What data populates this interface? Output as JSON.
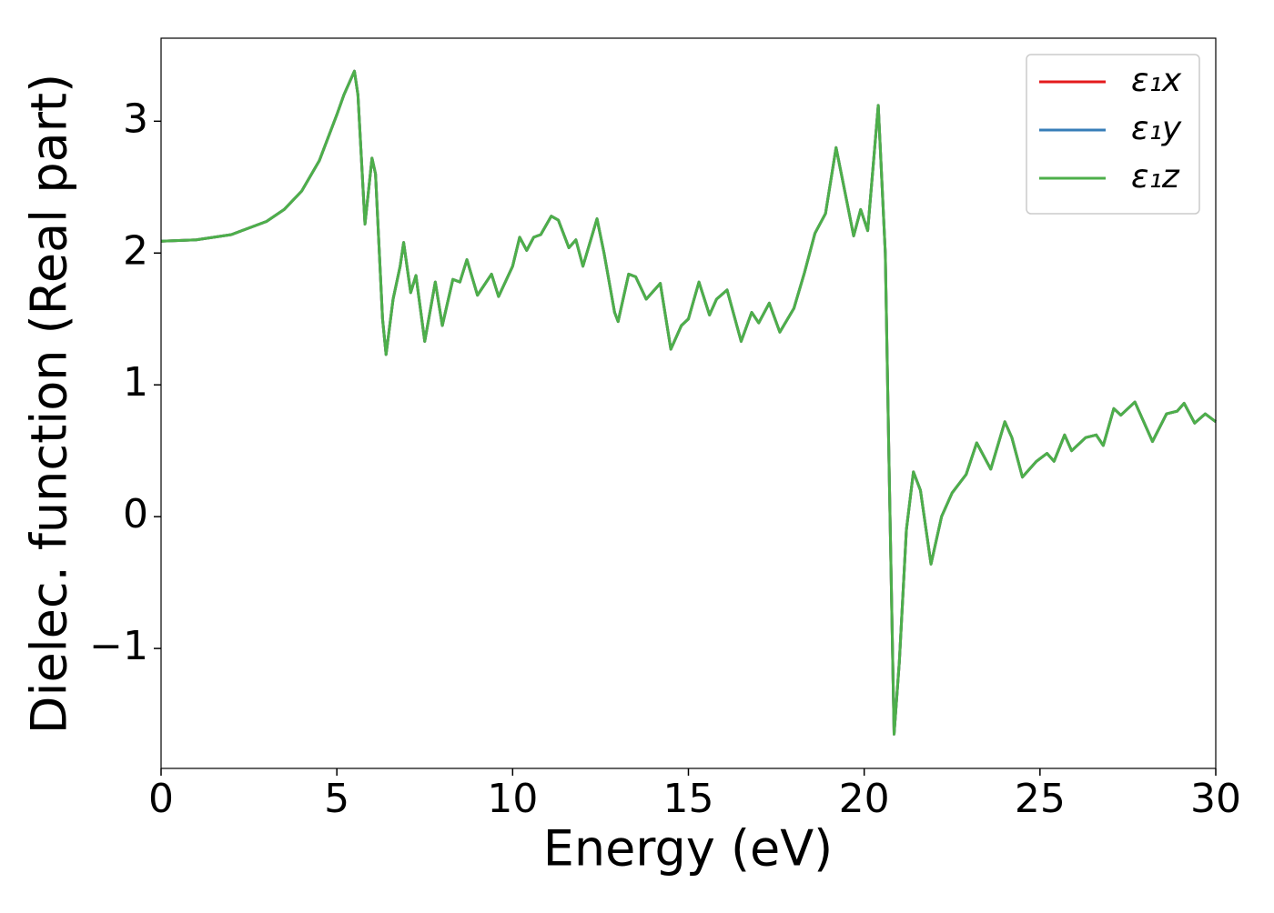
{
  "chart_data": {
    "type": "line",
    "xlabel": "Energy (eV)",
    "ylabel": "Dielec. function (Real part)",
    "x": [
      0,
      1,
      2,
      3,
      3.5,
      4,
      4.5,
      5,
      5.2,
      5.5,
      5.6,
      5.8,
      6.0,
      6.1,
      6.3,
      6.4,
      6.6,
      6.8,
      6.9,
      7.1,
      7.25,
      7.5,
      7.8,
      8.0,
      8.3,
      8.5,
      8.7,
      9.0,
      9.4,
      9.6,
      10.0,
      10.2,
      10.4,
      10.6,
      10.8,
      11.1,
      11.3,
      11.6,
      11.8,
      12.0,
      12.4,
      12.6,
      12.9,
      13.0,
      13.3,
      13.5,
      13.8,
      14.2,
      14.5,
      14.8,
      15.0,
      15.3,
      15.6,
      15.8,
      16.1,
      16.5,
      16.8,
      17.0,
      17.3,
      17.6,
      18.0,
      18.3,
      18.6,
      18.9,
      19.2,
      19.5,
      19.7,
      19.9,
      20.1,
      20.4,
      20.6,
      20.7,
      20.85,
      21.0,
      21.2,
      21.4,
      21.6,
      21.9,
      22.2,
      22.5,
      22.9,
      23.2,
      23.6,
      24.0,
      24.2,
      24.5,
      24.9,
      25.2,
      25.4,
      25.7,
      25.9,
      26.3,
      26.6,
      26.8,
      27.1,
      27.3,
      27.7,
      28.2,
      28.6,
      28.9,
      29.1,
      29.4,
      29.7,
      30
    ],
    "series": [
      {
        "name": "ε₁x",
        "color": "#e41a1c",
        "values": [
          2.09,
          2.1,
          2.14,
          2.24,
          2.33,
          2.47,
          2.7,
          3.05,
          3.2,
          3.38,
          3.2,
          2.22,
          2.72,
          2.6,
          1.5,
          1.23,
          1.65,
          1.9,
          2.08,
          1.7,
          1.83,
          1.33,
          1.78,
          1.45,
          1.8,
          1.78,
          1.95,
          1.68,
          1.84,
          1.67,
          1.9,
          2.12,
          2.02,
          2.12,
          2.14,
          2.28,
          2.25,
          2.04,
          2.1,
          1.9,
          2.26,
          2.0,
          1.55,
          1.48,
          1.84,
          1.82,
          1.65,
          1.77,
          1.27,
          1.45,
          1.5,
          1.78,
          1.53,
          1.65,
          1.72,
          1.33,
          1.55,
          1.47,
          1.62,
          1.4,
          1.58,
          1.85,
          2.15,
          2.3,
          2.8,
          2.4,
          2.13,
          2.33,
          2.17,
          3.12,
          2.0,
          0.5,
          -1.65,
          -1.1,
          -0.1,
          0.34,
          0.2,
          -0.36,
          0.0,
          0.18,
          0.32,
          0.56,
          0.36,
          0.72,
          0.6,
          0.3,
          0.42,
          0.48,
          0.42,
          0.62,
          0.5,
          0.6,
          0.62,
          0.54,
          0.82,
          0.77,
          0.87,
          0.57,
          0.78,
          0.8,
          0.86,
          0.71,
          0.78,
          0.72
        ]
      },
      {
        "name": "ε₁y",
        "color": "#377eb8",
        "values": [
          2.09,
          2.1,
          2.14,
          2.24,
          2.33,
          2.47,
          2.7,
          3.05,
          3.2,
          3.38,
          3.2,
          2.22,
          2.72,
          2.6,
          1.5,
          1.23,
          1.65,
          1.9,
          2.08,
          1.7,
          1.83,
          1.33,
          1.78,
          1.45,
          1.8,
          1.78,
          1.95,
          1.68,
          1.84,
          1.67,
          1.9,
          2.12,
          2.02,
          2.12,
          2.14,
          2.28,
          2.25,
          2.04,
          2.1,
          1.9,
          2.26,
          2.0,
          1.55,
          1.48,
          1.84,
          1.82,
          1.65,
          1.77,
          1.27,
          1.45,
          1.5,
          1.78,
          1.53,
          1.65,
          1.72,
          1.33,
          1.55,
          1.47,
          1.62,
          1.4,
          1.58,
          1.85,
          2.15,
          2.3,
          2.8,
          2.4,
          2.13,
          2.33,
          2.17,
          3.12,
          2.0,
          0.5,
          -1.65,
          -1.1,
          -0.1,
          0.34,
          0.2,
          -0.36,
          0.0,
          0.18,
          0.32,
          0.56,
          0.36,
          0.72,
          0.6,
          0.3,
          0.42,
          0.48,
          0.42,
          0.62,
          0.5,
          0.6,
          0.62,
          0.54,
          0.82,
          0.77,
          0.87,
          0.57,
          0.78,
          0.8,
          0.86,
          0.71,
          0.78,
          0.72
        ]
      },
      {
        "name": "ε₁z",
        "color": "#4daf4a",
        "values": [
          2.09,
          2.1,
          2.14,
          2.24,
          2.33,
          2.47,
          2.7,
          3.05,
          3.2,
          3.38,
          3.2,
          2.22,
          2.72,
          2.6,
          1.5,
          1.23,
          1.65,
          1.9,
          2.08,
          1.7,
          1.83,
          1.33,
          1.78,
          1.45,
          1.8,
          1.78,
          1.95,
          1.68,
          1.84,
          1.67,
          1.9,
          2.12,
          2.02,
          2.12,
          2.14,
          2.28,
          2.25,
          2.04,
          2.1,
          1.9,
          2.26,
          2.0,
          1.55,
          1.48,
          1.84,
          1.82,
          1.65,
          1.77,
          1.27,
          1.45,
          1.5,
          1.78,
          1.53,
          1.65,
          1.72,
          1.33,
          1.55,
          1.47,
          1.62,
          1.4,
          1.58,
          1.85,
          2.15,
          2.3,
          2.8,
          2.4,
          2.13,
          2.33,
          2.17,
          3.12,
          2.0,
          0.5,
          -1.65,
          -1.1,
          -0.1,
          0.34,
          0.2,
          -0.36,
          0.0,
          0.18,
          0.32,
          0.56,
          0.36,
          0.72,
          0.6,
          0.3,
          0.42,
          0.48,
          0.42,
          0.62,
          0.5,
          0.6,
          0.62,
          0.54,
          0.82,
          0.77,
          0.87,
          0.57,
          0.78,
          0.8,
          0.86,
          0.71,
          0.78,
          0.72
        ]
      }
    ],
    "xlim": [
      0,
      30
    ],
    "xticks": [
      0,
      5,
      10,
      15,
      20,
      25,
      30
    ],
    "ylim": [
      -1.91,
      3.63
    ],
    "yticks": [
      {
        "value": -1,
        "label": "−1"
      },
      0,
      1,
      2,
      3
    ],
    "grid": false,
    "legend": "upper right"
  }
}
